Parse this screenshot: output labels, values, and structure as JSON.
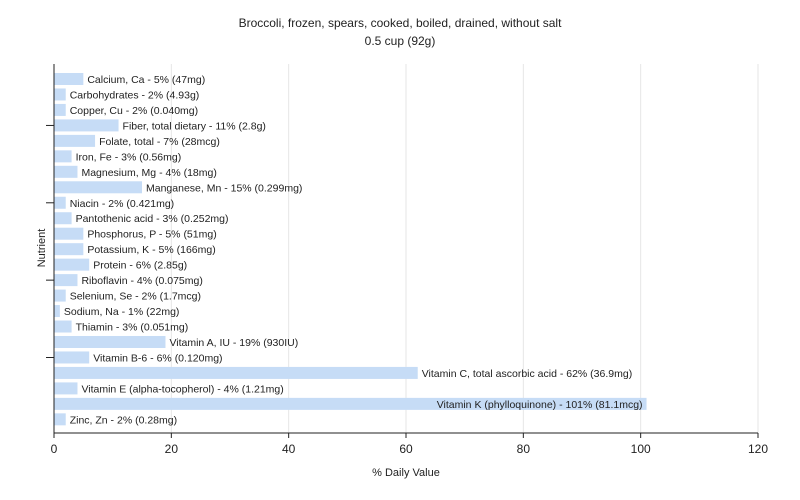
{
  "chart_data": {
    "type": "bar",
    "orientation": "horizontal",
    "title": "Broccoli, frozen, spears, cooked, boiled, drained, without salt",
    "subtitle": "0.5 cup (92g)",
    "xlabel": "% Daily Value",
    "ylabel": "Nutrient",
    "xlim": [
      0,
      120
    ],
    "xticks": [
      0,
      20,
      40,
      60,
      80,
      100,
      120
    ],
    "grid": true,
    "bar_color": "#c6dcf6",
    "categories": [
      "Calcium, Ca - 5% (47mg)",
      "Carbohydrates - 2% (4.93g)",
      "Copper, Cu - 2% (0.040mg)",
      "Fiber, total dietary - 11% (2.8g)",
      "Folate, total - 7% (28mcg)",
      "Iron, Fe - 3% (0.56mg)",
      "Magnesium, Mg - 4% (18mg)",
      "Manganese, Mn - 15% (0.299mg)",
      "Niacin - 2% (0.421mg)",
      "Pantothenic acid - 3% (0.252mg)",
      "Phosphorus, P - 5% (51mg)",
      "Potassium, K - 5% (166mg)",
      "Protein - 6% (2.85g)",
      "Riboflavin - 4% (0.075mg)",
      "Selenium, Se - 2% (1.7mcg)",
      "Sodium, Na - 1% (22mg)",
      "Thiamin - 3% (0.051mg)",
      "Vitamin A, IU - 19% (930IU)",
      "Vitamin B-6 - 6% (0.120mg)",
      "Vitamin C, total ascorbic acid - 62% (36.9mg)",
      "Vitamin E (alpha-tocopherol) - 4% (1.21mg)",
      "Vitamin K (phylloquinone) - 101% (81.1mcg)",
      "Zinc, Zn - 2% (0.28mg)"
    ],
    "values": [
      5,
      2,
      2,
      11,
      7,
      3,
      4,
      15,
      2,
      3,
      5,
      5,
      6,
      4,
      2,
      1,
      3,
      19,
      6,
      62,
      4,
      101,
      2
    ]
  }
}
